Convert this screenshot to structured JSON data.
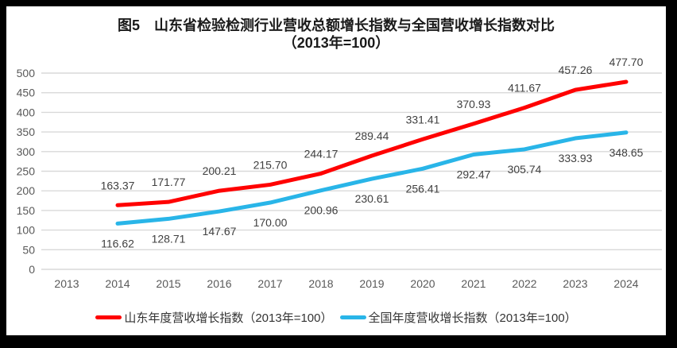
{
  "colors": {
    "frame_border": "#000000",
    "background": "#ffffff",
    "grid": "#d9d9d9",
    "axis_text": "#595959",
    "data_label": "#404040",
    "title_text": "#1a1a1a",
    "shandong_red": "#ff0000",
    "national_blue": "#29b5e8"
  },
  "chart_data": {
    "type": "line",
    "title": "图5　山东省检验检测行业营收总额增长指数与全国营收增长指数对比",
    "subtitle": "（2013年=100）",
    "x": [
      2014,
      2015,
      2016,
      2017,
      2018,
      2019,
      2020,
      2021,
      2022,
      2023,
      2024
    ],
    "x_axis_ticks": [
      "2013",
      "2014",
      "2015",
      "2016",
      "2017",
      "2018",
      "2019",
      "2020",
      "2021",
      "2022",
      "2023",
      "2024"
    ],
    "series": [
      {
        "name": "山东年度营收增长指数（2013年=100）",
        "color": "#ff0000",
        "label_position": "above",
        "values": [
          163.37,
          171.77,
          200.21,
          215.7,
          244.17,
          289.44,
          331.41,
          370.93,
          411.67,
          457.26,
          477.7
        ]
      },
      {
        "name": "全国年度营收增长指数（2013年=100）",
        "color": "#29b5e8",
        "label_position": "below",
        "values": [
          116.62,
          128.71,
          147.67,
          170.0,
          200.96,
          230.61,
          256.41,
          292.47,
          305.74,
          333.93,
          348.65
        ]
      }
    ],
    "ylim": [
      0,
      500
    ],
    "y_tick_step": 50,
    "y_axis_ticks": [
      0,
      50,
      100,
      150,
      200,
      250,
      300,
      350,
      400,
      450,
      500
    ],
    "grid": "horizontal-only",
    "legend_position": "bottom",
    "data_labels_decimals": 2
  }
}
